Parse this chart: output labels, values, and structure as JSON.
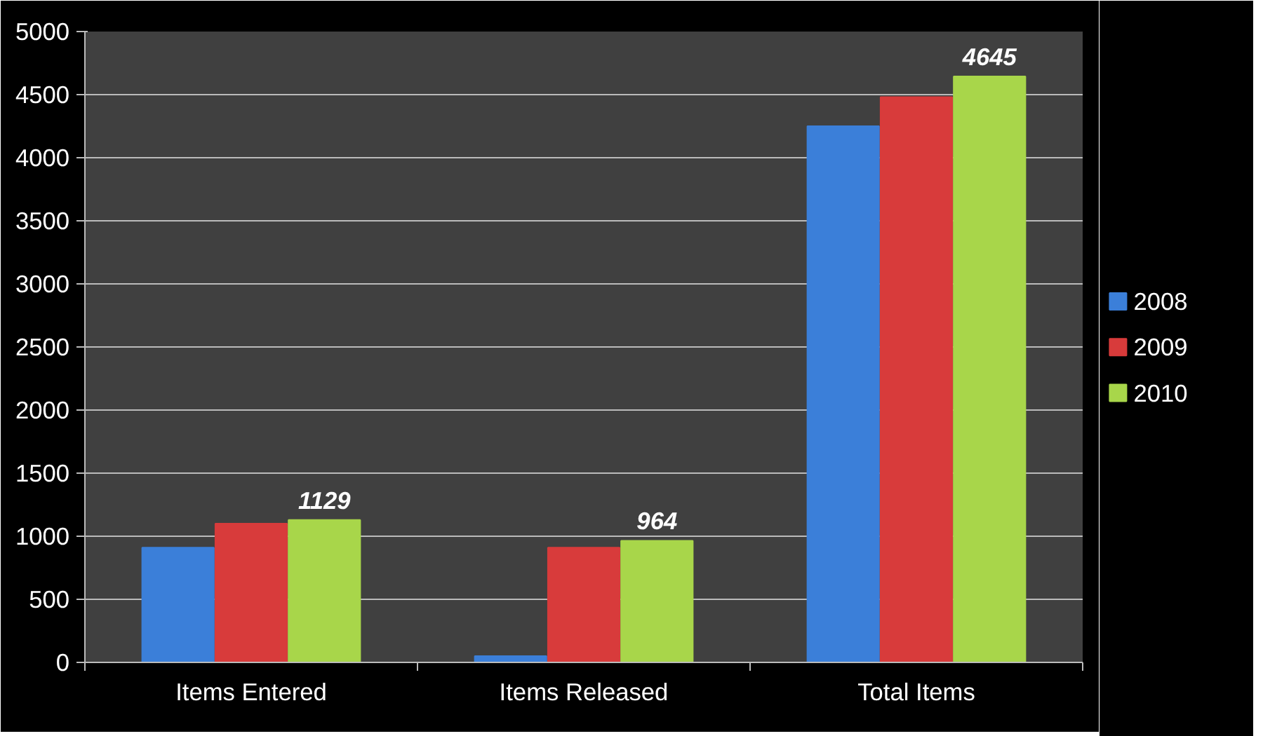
{
  "chart_data": {
    "type": "bar",
    "categories": [
      "Items Entered",
      "Items Released",
      "Total Items"
    ],
    "series": [
      {
        "name": "2008",
        "color": "#3b7fd9",
        "values": [
          910,
          50,
          4250
        ]
      },
      {
        "name": "2009",
        "color": "#d83b3b",
        "values": [
          1100,
          910,
          4480
        ]
      },
      {
        "name": "2010",
        "color": "#a8d64a",
        "values": [
          1129,
          964,
          4645
        ],
        "value_labels": [
          "1129",
          "964",
          "4645"
        ]
      }
    ],
    "ylim": [
      0,
      5000
    ],
    "yticks": [
      0,
      500,
      1000,
      1500,
      2000,
      2500,
      3000,
      3500,
      4000,
      4500,
      5000
    ],
    "grid": "y",
    "legend": "right"
  }
}
